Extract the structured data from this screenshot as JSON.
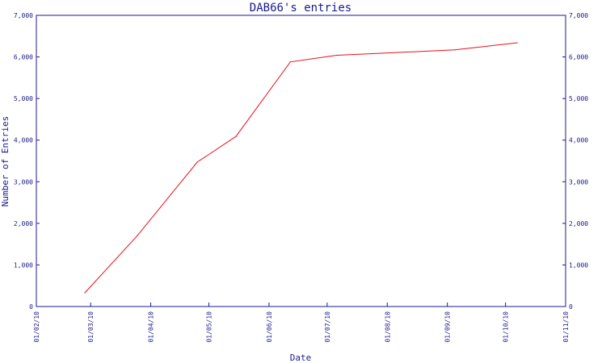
{
  "chart_data": {
    "type": "line",
    "title": "DAB66's entries",
    "xlabel": "Date",
    "ylabel": "Number of Entries",
    "ylim": [
      0,
      7000
    ],
    "y_ticks": [
      0,
      1000,
      2000,
      3000,
      4000,
      5000,
      6000,
      7000
    ],
    "y_tick_labels": [
      "0",
      "1,000",
      "2,000",
      "3,000",
      "4,000",
      "5,000",
      "6,000",
      "7,000"
    ],
    "x_ticks": [
      "2010-02-01",
      "2010-03-01",
      "2010-04-01",
      "2010-05-01",
      "2010-06-01",
      "2010-07-01",
      "2010-08-01",
      "2010-09-01",
      "2010-10-01",
      "2010-11-01"
    ],
    "x_tick_labels": [
      "01/02/10",
      "01/03/10",
      "01/04/10",
      "01/05/10",
      "01/06/10",
      "01/07/10",
      "01/08/10",
      "01/09/10",
      "01/10/10",
      "01/11/10"
    ],
    "grid": false,
    "series": [
      {
        "color": "#e8101a",
        "x": [
          "2010-02-26",
          "2010-03-25",
          "2010-04-25",
          "2010-05-15",
          "2010-06-12",
          "2010-07-06",
          "2010-07-30",
          "2010-09-05",
          "2010-10-07"
        ],
        "y": [
          330,
          1700,
          3470,
          4090,
          5880,
          6040,
          6090,
          6170,
          6340
        ]
      }
    ]
  }
}
